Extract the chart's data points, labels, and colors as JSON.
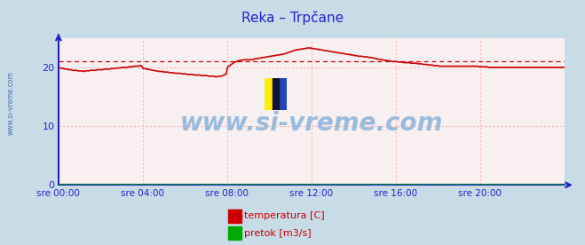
{
  "title": "Reka – Trpčane",
  "fig_bg_color": "#c8dce8",
  "plot_bg_color": "#f8f0f0",
  "grid_color": "#ffb0b0",
  "axis_color": "#2222cc",
  "title_color": "#2222cc",
  "tick_color": "#2222cc",
  "watermark_text": "www.si-vreme.com",
  "watermark_color": "#99bbdd",
  "xlim": [
    0,
    288
  ],
  "ylim": [
    0,
    25
  ],
  "yticks": [
    0,
    10,
    20
  ],
  "xtick_labels": [
    "sre 00:00",
    "sre 04:00",
    "sre 08:00",
    "sre 12:00",
    "sre 16:00",
    "sre 20:00"
  ],
  "xtick_positions": [
    0,
    48,
    96,
    144,
    192,
    240
  ],
  "temp_color": "#cc0000",
  "flow_color": "#00aa00",
  "avg_color": "#cc0000",
  "avg_value": 21.0,
  "legend_temp_label": "temperatura [C]",
  "legend_flow_label": "pretok [m3/s]",
  "temp_data": [
    20.0,
    19.9,
    19.8,
    19.8,
    19.7,
    19.7,
    19.6,
    19.6,
    19.5,
    19.5,
    19.5,
    19.4,
    19.4,
    19.4,
    19.3,
    19.4,
    19.4,
    19.4,
    19.5,
    19.5,
    19.5,
    19.5,
    19.6,
    19.6,
    19.6,
    19.6,
    19.7,
    19.7,
    19.7,
    19.7,
    19.8,
    19.8,
    19.8,
    19.9,
    19.9,
    19.9,
    20.0,
    20.0,
    20.0,
    20.0,
    20.1,
    20.1,
    20.1,
    20.2,
    20.2,
    20.2,
    20.3,
    20.3,
    19.8,
    19.8,
    19.7,
    19.7,
    19.6,
    19.5,
    19.5,
    19.4,
    19.4,
    19.3,
    19.3,
    19.3,
    19.2,
    19.2,
    19.2,
    19.1,
    19.1,
    19.1,
    19.0,
    19.0,
    19.0,
    19.0,
    18.9,
    18.9,
    18.9,
    18.8,
    18.8,
    18.8,
    18.8,
    18.7,
    18.7,
    18.7,
    18.7,
    18.6,
    18.6,
    18.6,
    18.6,
    18.5,
    18.5,
    18.5,
    18.5,
    18.4,
    18.4,
    18.5,
    18.5,
    18.6,
    18.7,
    18.8,
    20.1,
    20.3,
    20.5,
    20.7,
    20.9,
    21.0,
    21.1,
    21.2,
    21.2,
    21.3,
    21.3,
    21.3,
    21.3,
    21.3,
    21.3,
    21.4,
    21.5,
    21.5,
    21.6,
    21.6,
    21.7,
    21.7,
    21.8,
    21.8,
    21.9,
    21.9,
    22.0,
    22.0,
    22.1,
    22.1,
    22.2,
    22.2,
    22.3,
    22.4,
    22.5,
    22.6,
    22.7,
    22.8,
    22.9,
    23.0,
    23.0,
    23.1,
    23.1,
    23.2,
    23.2,
    23.3,
    23.3,
    23.3,
    23.2,
    23.2,
    23.1,
    23.1,
    23.0,
    23.0,
    22.9,
    22.9,
    22.8,
    22.8,
    22.7,
    22.7,
    22.6,
    22.6,
    22.5,
    22.5,
    22.4,
    22.4,
    22.3,
    22.3,
    22.2,
    22.2,
    22.1,
    22.1,
    22.0,
    22.0,
    21.9,
    21.9,
    21.9,
    21.8,
    21.8,
    21.8,
    21.7,
    21.7,
    21.6,
    21.6,
    21.5,
    21.4,
    21.4,
    21.3,
    21.3,
    21.2,
    21.2,
    21.1,
    21.1,
    21.0,
    21.0,
    21.0,
    21.0,
    20.9,
    20.9,
    20.9,
    20.8,
    20.8,
    20.8,
    20.8,
    20.7,
    20.7,
    20.7,
    20.7,
    20.6,
    20.6,
    20.6,
    20.5,
    20.5,
    20.5,
    20.4,
    20.4,
    20.4,
    20.3,
    20.3,
    20.3,
    20.2,
    20.2,
    20.2,
    20.2,
    20.2,
    20.2,
    20.2,
    20.2,
    20.2,
    20.2,
    20.2,
    20.2,
    20.2,
    20.2,
    20.2,
    20.2,
    20.2,
    20.2,
    20.2,
    20.2,
    20.2,
    20.2,
    20.2,
    20.1,
    20.1,
    20.1,
    20.1,
    20.1,
    20.0,
    20.0,
    20.0,
    20.0,
    20.0,
    20.0,
    20.0,
    20.0,
    20.0,
    20.0,
    20.0,
    20.0,
    20.0,
    20.0,
    20.0,
    20.0,
    20.0,
    20.0,
    20.0,
    20.0,
    20.0,
    20.0,
    20.0,
    20.0,
    20.0,
    20.0,
    20.0,
    20.0,
    20.0,
    20.0,
    20.0,
    20.0,
    20.0,
    20.0,
    20.0,
    20.0,
    20.0,
    20.0,
    20.0,
    20.0,
    20.0,
    20.0,
    20.0,
    20.0
  ],
  "flow_data_value": 0.0,
  "left_label": "www.si-vreme.com"
}
